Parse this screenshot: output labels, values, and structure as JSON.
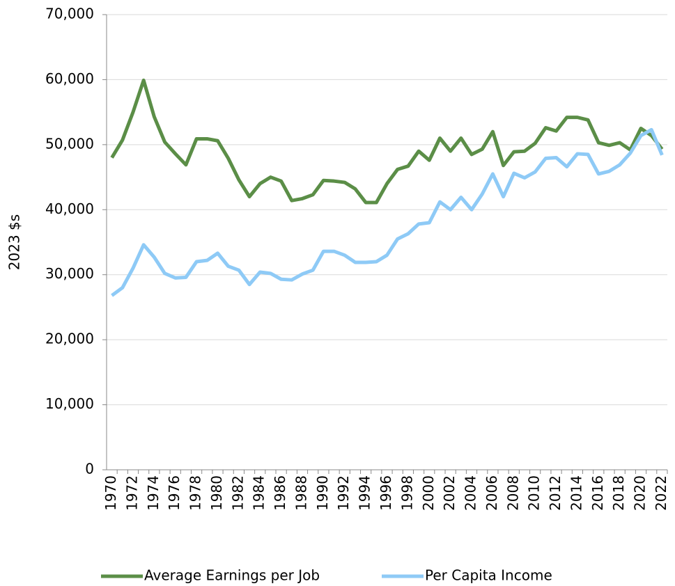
{
  "chart_data": {
    "type": "line",
    "y_label": "2023 $s",
    "categories": [
      "1970",
      null,
      "1972",
      null,
      "1974",
      null,
      "1976",
      null,
      "1978",
      null,
      "1980",
      null,
      "1982",
      null,
      "1984",
      null,
      "1986",
      null,
      "1988",
      null,
      "1990",
      null,
      "1992",
      null,
      "1994",
      null,
      "1996",
      null,
      "1998",
      null,
      "2000",
      null,
      "2002",
      null,
      "2004",
      null,
      "2006",
      null,
      "2008",
      null,
      "2010",
      null,
      "2012",
      null,
      "2014",
      null,
      "2016",
      null,
      "2018",
      null,
      "2020",
      null,
      "2022"
    ],
    "series": [
      {
        "name": "Average Earnings per Job",
        "color": "#5b8e47",
        "values": [
          48000,
          50700,
          55000,
          59900,
          54300,
          50400,
          48600,
          46900,
          50900,
          50900,
          50600,
          47900,
          44600,
          42000,
          44000,
          45000,
          44400,
          41400,
          41700,
          42300,
          44500,
          44400,
          44200,
          43200,
          41100,
          41100,
          44000,
          46200,
          46700,
          49000,
          47600,
          51000,
          49000,
          51000,
          48500,
          49300,
          52000,
          46800,
          48900,
          49000,
          50200,
          52600,
          52100,
          54200,
          54200,
          53800,
          50300,
          49900,
          50300,
          49200,
          52500,
          51400,
          49300
        ]
      },
      {
        "name": "Per Capita Income",
        "color": "#8ecaf6",
        "values": [
          26800,
          28000,
          31000,
          34600,
          32700,
          30200,
          29500,
          29600,
          32000,
          32200,
          33300,
          31300,
          30700,
          28500,
          30400,
          30200,
          29300,
          29200,
          30100,
          30700,
          33600,
          33600,
          33000,
          31900,
          31900,
          32000,
          33000,
          35500,
          36300,
          37800,
          38000,
          41200,
          40000,
          41900,
          40000,
          42400,
          45500,
          42000,
          45600,
          44900,
          45800,
          47900,
          48000,
          46600,
          48600,
          48500,
          45500,
          45900,
          46900,
          48700,
          51400,
          52300,
          48400
        ]
      }
    ],
    "ylim": [
      0,
      70000
    ],
    "yticks": [
      0,
      {
        "value": 10000,
        "label": "10,000"
      },
      {
        "value": 20000,
        "label": "20,000"
      },
      {
        "value": 30000,
        "label": "30,000"
      },
      {
        "value": 40000,
        "label": "40,000"
      },
      {
        "value": 50000,
        "label": "50,000"
      },
      {
        "value": 60000,
        "label": "60,000"
      },
      {
        "value": 70000,
        "label": "70,000"
      }
    ],
    "grid": true,
    "legend": "bottom"
  }
}
